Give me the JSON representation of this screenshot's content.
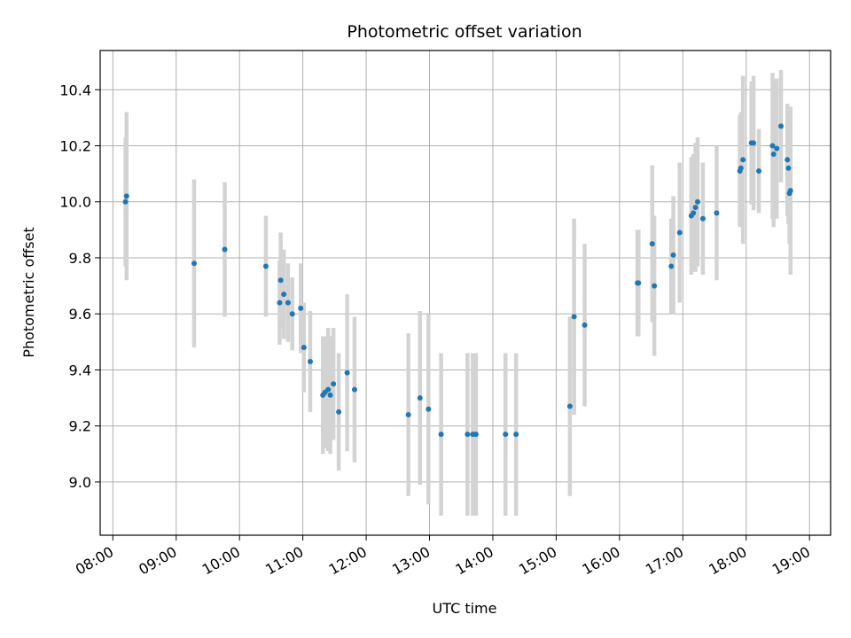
{
  "chart_data": {
    "type": "scatter",
    "title": "Photometric offset variation",
    "xlabel": "UTC time",
    "ylabel": "Photometric offset",
    "grid": true,
    "legend": "none",
    "xlim": [
      "07:48",
      "19:20"
    ],
    "ylim": [
      8.81,
      10.54
    ],
    "x_ticks": [
      "08:00",
      "09:00",
      "10:00",
      "11:00",
      "12:00",
      "13:00",
      "14:00",
      "15:00",
      "16:00",
      "17:00",
      "18:00",
      "19:00"
    ],
    "y_ticks": [
      9.0,
      9.2,
      9.4,
      9.6,
      9.8,
      10.0,
      10.2,
      10.4
    ],
    "y_tick_labels": [
      "9.0",
      "9.2",
      "9.4",
      "9.6",
      "9.8",
      "10.0",
      "10.2",
      "10.4"
    ],
    "point_color": "#1f77b4",
    "errorbar_color": "#d3d3d3",
    "series": [
      {
        "x": [
          "08:12",
          "08:13",
          "09:17",
          "09:46",
          "10:25",
          "10:38",
          "10:39",
          "10:42",
          "10:46",
          "10:50",
          "10:58",
          "11:01",
          "11:07",
          "11:19",
          "11:21",
          "11:24",
          "11:26",
          "11:29",
          "11:34",
          "11:42",
          "11:49",
          "12:40",
          "12:51",
          "12:59",
          "13:11",
          "13:36",
          "13:41",
          "13:44",
          "14:12",
          "14:22",
          "15:13",
          "15:17",
          "15:27",
          "16:17",
          "16:18",
          "16:31",
          "16:33",
          "16:49",
          "16:51",
          "16:57",
          "17:08",
          "17:10",
          "17:12",
          "17:14",
          "17:19",
          "17:32",
          "17:54",
          "17:55",
          "17:57",
          "18:05",
          "18:07",
          "18:12",
          "18:25",
          "18:26",
          "18:29",
          "18:33",
          "18:39",
          "18:40",
          "18:41",
          "18:42"
        ],
        "y": [
          10.0,
          10.02,
          9.78,
          9.83,
          9.77,
          9.64,
          9.72,
          9.67,
          9.64,
          9.6,
          9.62,
          9.48,
          9.43,
          9.31,
          9.32,
          9.33,
          9.31,
          9.35,
          9.25,
          9.39,
          9.33,
          9.24,
          9.3,
          9.26,
          9.17,
          9.17,
          9.17,
          9.17,
          9.17,
          9.17,
          9.27,
          9.59,
          9.56,
          9.71,
          9.71,
          9.85,
          9.7,
          9.77,
          9.81,
          9.89,
          9.95,
          9.96,
          9.98,
          10.0,
          9.94,
          9.96,
          10.11,
          10.12,
          10.15,
          10.21,
          10.21,
          10.11,
          10.2,
          10.17,
          10.19,
          10.27,
          10.15,
          10.12,
          10.03,
          10.04
        ],
        "err": [
          0.23,
          0.3,
          0.3,
          0.24,
          0.18,
          0.15,
          0.17,
          0.16,
          0.14,
          0.13,
          0.16,
          0.16,
          0.18,
          0.21,
          0.2,
          0.22,
          0.21,
          0.2,
          0.21,
          0.28,
          0.26,
          0.29,
          0.31,
          0.34,
          0.29,
          0.29,
          0.29,
          0.29,
          0.29,
          0.29,
          0.32,
          0.35,
          0.29,
          0.19,
          0.19,
          0.28,
          0.25,
          0.17,
          0.21,
          0.25,
          0.21,
          0.21,
          0.23,
          0.23,
          0.2,
          0.24,
          0.2,
          0.2,
          0.3,
          0.22,
          0.24,
          0.15,
          0.26,
          0.26,
          0.25,
          0.2,
          0.2,
          0.2,
          0.18,
          0.3
        ]
      }
    ]
  }
}
